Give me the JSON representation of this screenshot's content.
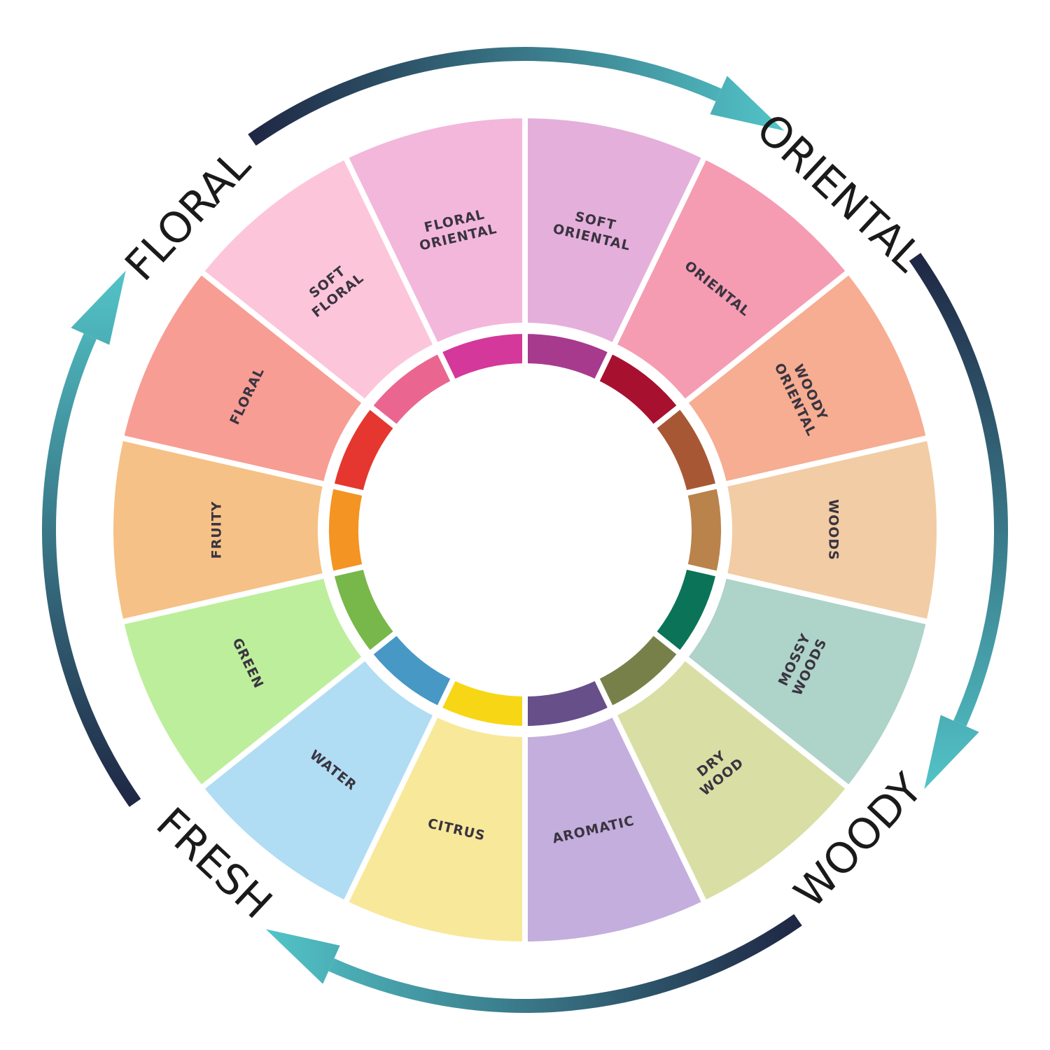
{
  "families": [
    {
      "label": "FLORAL"
    },
    {
      "label": "ORIENTAL"
    },
    {
      "label": "WOODY"
    },
    {
      "label": "FRESH"
    }
  ],
  "segments": [
    {
      "lines": [
        "FLORAL",
        "ORIENTAL"
      ],
      "color": "#f3b7dc",
      "inner_color": "#d4389a"
    },
    {
      "lines": [
        "SOFT",
        "ORIENTAL"
      ],
      "color": "#e5afdb",
      "inner_color": "#a83a8e"
    },
    {
      "lines": [
        "ORIENTAL"
      ],
      "color": "#f59cb3",
      "inner_color": "#a81030"
    },
    {
      "lines": [
        "WOODY",
        "ORIENTAL"
      ],
      "color": "#f6ad92",
      "inner_color": "#a85735"
    },
    {
      "lines": [
        "WOODS"
      ],
      "color": "#f2cca4",
      "inner_color": "#b9834b"
    },
    {
      "lines": [
        "MOSSY",
        "WOODS"
      ],
      "color": "#aed3c8",
      "inner_color": "#0b7358"
    },
    {
      "lines": [
        "DRY",
        "WOOD"
      ],
      "color": "#d9dfa4",
      "inner_color": "#78804a"
    },
    {
      "lines": [
        "AROMATIC"
      ],
      "color": "#c4aedd",
      "inner_color": "#674f8a"
    },
    {
      "lines": [
        "CITRUS"
      ],
      "color": "#f8e899",
      "inner_color": "#f7d715"
    },
    {
      "lines": [
        "WATER"
      ],
      "color": "#b0ddf3",
      "inner_color": "#4798c4"
    },
    {
      "lines": [
        "GREEN"
      ],
      "color": "#bdee9c",
      "inner_color": "#78b74a"
    },
    {
      "lines": [
        "FRUITY"
      ],
      "color": "#f6c186",
      "inner_color": "#f39423"
    },
    {
      "lines": [
        "FLORAL"
      ],
      "color": "#f79d94",
      "inner_color": "#e5372f"
    },
    {
      "lines": [
        "SOFT",
        "FLORAL"
      ],
      "color": "#fdc5da",
      "inner_color": "#ea6690"
    }
  ]
}
